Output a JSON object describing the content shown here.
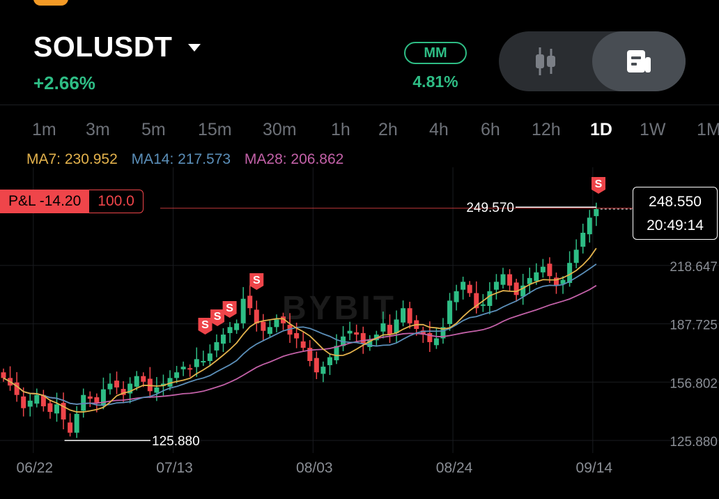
{
  "header": {
    "symbol": "SOLUSDT",
    "change": "+2.66%",
    "mm_label": "MM",
    "mm_value": "4.81%"
  },
  "timeframes": [
    "1m",
    "3m",
    "5m",
    "15m",
    "30m",
    "1h",
    "2h",
    "4h",
    "6h",
    "12h",
    "1D",
    "1W",
    "1M"
  ],
  "active_timeframe": "1D",
  "ma": {
    "ma7": "MA7: 230.952",
    "ma14": "MA14: 217.573",
    "ma28": "MA28: 206.862"
  },
  "position": {
    "pl_label": "P&L -14.20",
    "size": "100.0"
  },
  "last_price": {
    "price": "248.550",
    "countdown": "20:49:14"
  },
  "watermark": "BYBIT",
  "colors": {
    "up": "#2ebd85",
    "down": "#ef454a",
    "ma7": "#e3b24c",
    "ma14": "#5b8fb9",
    "ma28": "#c361a8"
  },
  "chart_data": {
    "type": "candlestick",
    "ylim": [
      110,
      265
    ],
    "y_ticks": [
      {
        "value": 218.647,
        "label": "218.647"
      },
      {
        "value": 187.725,
        "label": "187.725"
      },
      {
        "value": 156.802,
        "label": "156.802"
      },
      {
        "value": 125.88,
        "label": "125.880"
      }
    ],
    "x_ticks": [
      {
        "index": 5,
        "label": "06/22"
      },
      {
        "index": 26,
        "label": "07/13"
      },
      {
        "index": 47,
        "label": "08/03"
      },
      {
        "index": 68,
        "label": "08/24"
      },
      {
        "index": 89,
        "label": "09/14"
      }
    ],
    "high_marker": {
      "index": 89,
      "value": 249.57,
      "label": "249.570"
    },
    "low_marker": {
      "index": 10,
      "value": 125.88,
      "label": "125.880"
    },
    "entry_price": 249.0,
    "sell_markers": [
      {
        "index": 33,
        "label": "S"
      },
      {
        "index": 34,
        "label": "S"
      },
      {
        "index": 35,
        "label": "S"
      },
      {
        "index": 38,
        "label": "S"
      },
      {
        "index": 93,
        "label": "S"
      }
    ],
    "closes": [
      159,
      155,
      150,
      143,
      147,
      150,
      144,
      141,
      145,
      137,
      130,
      140,
      150,
      148,
      146,
      153,
      156,
      154,
      150,
      156,
      160,
      157,
      152,
      154,
      156,
      159,
      162,
      165,
      164,
      169,
      168,
      172,
      178,
      182,
      186,
      188,
      201,
      196,
      188,
      184,
      186,
      190,
      188,
      182,
      180,
      175,
      168,
      162,
      165,
      170,
      176,
      181,
      184,
      182,
      177,
      179,
      182,
      188,
      182,
      190,
      196,
      188,
      185,
      182,
      178,
      180,
      186,
      200,
      205,
      210,
      204,
      196,
      198,
      205,
      210,
      214,
      208,
      203,
      208,
      212,
      215,
      218,
      213,
      208,
      211,
      220,
      227,
      236,
      244,
      248.55
    ]
  }
}
